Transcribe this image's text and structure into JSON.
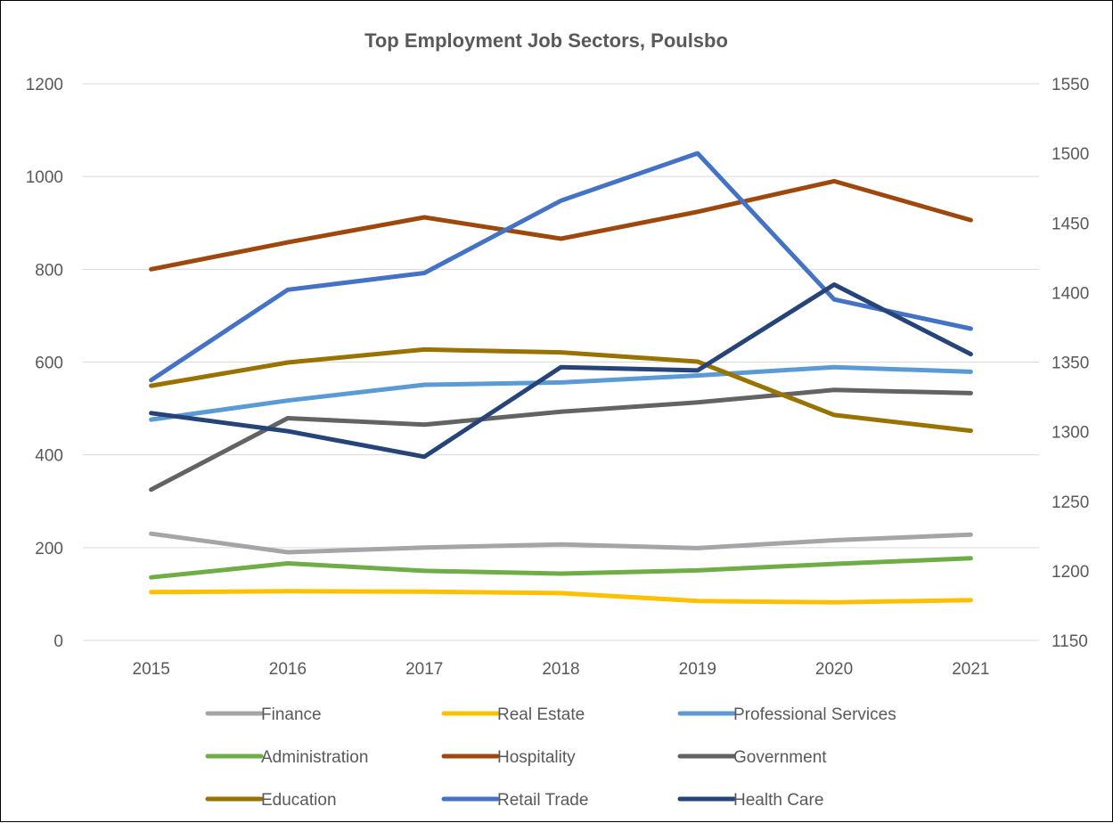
{
  "chart_data": {
    "type": "line",
    "title": "Top Employment Job Sectors, Poulsbo",
    "x": [
      "2015",
      "2016",
      "2017",
      "2018",
      "2019",
      "2020",
      "2021"
    ],
    "primary_axis": {
      "ylim": [
        0,
        1200
      ],
      "ticks": [
        0,
        200,
        400,
        600,
        800,
        1000,
        1200
      ]
    },
    "secondary_axis": {
      "ylim": [
        1150,
        1550
      ],
      "ticks": [
        1150,
        1200,
        1250,
        1300,
        1350,
        1400,
        1450,
        1500,
        1550
      ]
    },
    "grid": true,
    "legend_position": "bottom",
    "series": [
      {
        "name": "Finance",
        "axis": "primary",
        "color": "#a5a5a5",
        "values": [
          230,
          190,
          200,
          207,
          199,
          216,
          228
        ]
      },
      {
        "name": "Real Estate",
        "axis": "primary",
        "color": "#ffc000",
        "values": [
          104,
          106,
          105,
          102,
          85,
          82,
          87
        ]
      },
      {
        "name": "Professional Services",
        "axis": "primary",
        "color": "#5b9bd5",
        "values": [
          476,
          517,
          551,
          556,
          571,
          589,
          579
        ]
      },
      {
        "name": "Administration",
        "axis": "primary",
        "color": "#70ad47",
        "values": [
          136,
          166,
          150,
          144,
          151,
          165,
          177
        ]
      },
      {
        "name": "Hospitality",
        "axis": "primary",
        "color": "#9e480e",
        "values": [
          800,
          858,
          912,
          866,
          924,
          990,
          906
        ]
      },
      {
        "name": "Government",
        "axis": "primary",
        "color": "#636363",
        "values": [
          325,
          479,
          465,
          493,
          513,
          540,
          533
        ]
      },
      {
        "name": "Education",
        "axis": "primary",
        "color": "#997300",
        "values": [
          549,
          599,
          627,
          621,
          601,
          486,
          452
        ]
      },
      {
        "name": "Retail Trade",
        "axis": "secondary",
        "color": "#4472c4",
        "values": [
          1337,
          1402,
          1414,
          1466,
          1500,
          1395,
          1374
        ]
      },
      {
        "name": "Health Care",
        "axis": "primary",
        "color": "#264478",
        "values": [
          490,
          451,
          396,
          589,
          582,
          767,
          617
        ]
      }
    ]
  }
}
